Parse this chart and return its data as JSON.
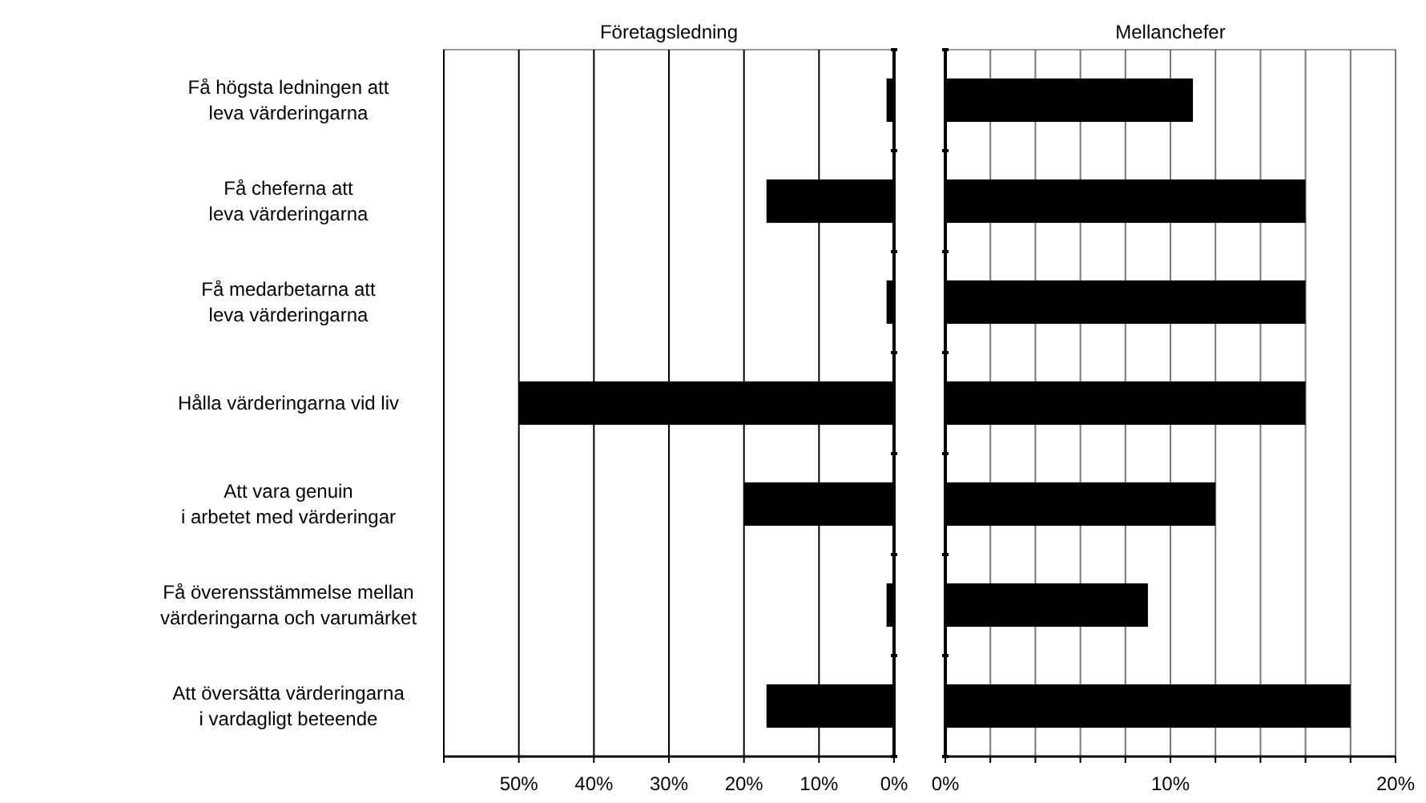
{
  "chart_data": [
    {
      "type": "bar",
      "orientation": "horizontal",
      "title": "Företagsledning",
      "categories": [
        "Få högsta ledningen att\nleva värderingarna",
        "Få cheferna att\nleva värderingarna",
        "Få medarbetarna att\nleva värderingarna",
        "Hålla värderingarna vid liv",
        "Att vara genuin\ni arbetet med värderingar",
        "Få överensstämmelse mellan\nvärderingarna och varumärket",
        "Att översätta värderingarna\ni vardagligt beteende"
      ],
      "values": [
        1,
        17,
        1,
        50,
        20,
        1,
        17
      ],
      "color": "#000000",
      "xlim": [
        60,
        0
      ],
      "xticks": [
        {
          "value": 60,
          "label": null
        },
        {
          "value": 50,
          "label": "50%"
        },
        {
          "value": 40,
          "label": "40%"
        },
        {
          "value": 30,
          "label": "30%"
        },
        {
          "value": 20,
          "label": "20%"
        },
        {
          "value": 10,
          "label": "10%"
        },
        {
          "value": 0,
          "label": "0%"
        }
      ],
      "grid": "x"
    },
    {
      "type": "bar",
      "orientation": "horizontal",
      "title": "Mellanchefer",
      "tick_labels": "x",
      "categories": [
        null,
        null,
        null,
        null,
        null,
        null,
        null
      ],
      "values": [
        11,
        16,
        16,
        16,
        12,
        9,
        18
      ],
      "color": "#000000",
      "xlim": [
        0,
        20
      ],
      "xticks": [
        {
          "value": 0,
          "label": "0%"
        },
        {
          "value": 2,
          "label": null
        },
        {
          "value": 4,
          "label": null
        },
        {
          "value": 6,
          "label": null
        },
        {
          "value": 8,
          "label": null
        },
        {
          "value": 10,
          "label": "10%"
        },
        {
          "value": 12,
          "label": null
        },
        {
          "value": 14,
          "label": null
        },
        {
          "value": 16,
          "label": null
        },
        {
          "value": 18,
          "label": null
        },
        {
          "value": 20,
          "label": "20%"
        }
      ],
      "grid": "x"
    }
  ]
}
